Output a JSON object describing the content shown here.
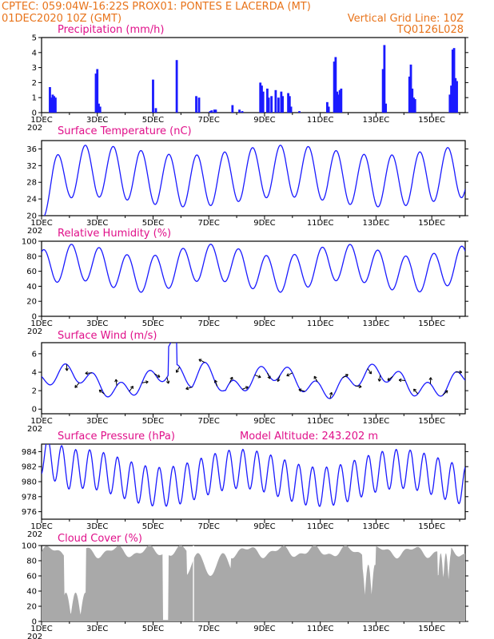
{
  "header": {
    "line1_left": "CPTEC:   059:04W-16:22S   PROX01: PONTES E LACERDA (MT)",
    "line2_left": "01DEC2020 10Z (GMT)",
    "line2_right": "Vertical Grid Line: 10Z",
    "line3_right": "TQ0126L028"
  },
  "colors": {
    "header": "#e8731a",
    "title": "#e0108a",
    "series": "#1a1aff",
    "cloud": "#a9a9a9",
    "arrow": "#000000"
  },
  "x_ticks": [
    "1DEC",
    "3DEC",
    "5DEC",
    "7DEC",
    "9DEC",
    "11DEC",
    "13DEC",
    "15DEC"
  ],
  "year_fragment": "202",
  "chart_data": [
    {
      "type": "bar",
      "title": "Precipitation (mm/h)",
      "ylim": [
        0,
        5
      ],
      "yticks": [
        0,
        1,
        2,
        3,
        4,
        5
      ],
      "events": [
        [
          0.3,
          1.7
        ],
        [
          0.35,
          1.0
        ],
        [
          0.4,
          1.2
        ],
        [
          0.45,
          1.1
        ],
        [
          0.5,
          1.0
        ],
        [
          1.95,
          2.6
        ],
        [
          2.0,
          2.9
        ],
        [
          2.05,
          0.6
        ],
        [
          2.1,
          0.4
        ],
        [
          4.0,
          2.2
        ],
        [
          4.1,
          0.3
        ],
        [
          4.85,
          3.5
        ],
        [
          5.55,
          1.1
        ],
        [
          5.65,
          1.0
        ],
        [
          6.05,
          0.1
        ],
        [
          6.1,
          0.15
        ],
        [
          6.2,
          0.2
        ],
        [
          6.25,
          0.2
        ],
        [
          6.85,
          0.5
        ],
        [
          7.1,
          0.2
        ],
        [
          7.2,
          0.1
        ],
        [
          7.85,
          2.0
        ],
        [
          7.9,
          1.8
        ],
        [
          7.95,
          1.4
        ],
        [
          8.1,
          1.6
        ],
        [
          8.15,
          1.0
        ],
        [
          8.25,
          1.1
        ],
        [
          8.4,
          1.5
        ],
        [
          8.5,
          1.0
        ],
        [
          8.6,
          1.4
        ],
        [
          8.65,
          1.1
        ],
        [
          8.85,
          1.3
        ],
        [
          8.9,
          1.1
        ],
        [
          8.95,
          0.4
        ],
        [
          9.25,
          0.1
        ],
        [
          10.25,
          0.7
        ],
        [
          10.3,
          0.4
        ],
        [
          10.5,
          3.4
        ],
        [
          10.55,
          3.7
        ],
        [
          10.6,
          1.4
        ],
        [
          10.65,
          1.2
        ],
        [
          10.7,
          1.5
        ],
        [
          10.75,
          1.6
        ],
        [
          12.25,
          2.9
        ],
        [
          12.3,
          4.5
        ],
        [
          12.35,
          0.6
        ],
        [
          13.2,
          2.4
        ],
        [
          13.25,
          3.2
        ],
        [
          13.3,
          1.6
        ],
        [
          13.35,
          1.0
        ],
        [
          13.4,
          0.9
        ],
        [
          14.65,
          1.2
        ],
        [
          14.7,
          1.8
        ],
        [
          14.75,
          4.2
        ],
        [
          14.8,
          4.3
        ],
        [
          14.85,
          2.3
        ],
        [
          14.9,
          2.1
        ]
      ]
    },
    {
      "type": "line",
      "title": "Surface Temperature (nC)",
      "ylim": [
        20,
        38
      ],
      "yticks": [
        20,
        24,
        28,
        32,
        36
      ]
    },
    {
      "type": "line",
      "title": "Relative Humidity (%)",
      "ylim": [
        0,
        100
      ],
      "yticks": [
        0,
        20,
        40,
        60,
        80,
        100
      ]
    },
    {
      "type": "line",
      "title": "Surface Wind (m/s)",
      "ylim": [
        -0.5,
        7.2
      ],
      "yticks": [
        0,
        2,
        4,
        6
      ]
    },
    {
      "type": "line",
      "title": "Surface Pressure (hPa)",
      "subtitle": "Model Altitude: 243.202  m",
      "ylim": [
        975,
        985
      ],
      "yticks": [
        976,
        978,
        980,
        982,
        984
      ]
    },
    {
      "type": "area",
      "title": "Cloud Cover (%)",
      "ylim": [
        0,
        100
      ],
      "yticks": [
        0,
        20,
        40,
        60,
        80,
        100
      ]
    }
  ]
}
